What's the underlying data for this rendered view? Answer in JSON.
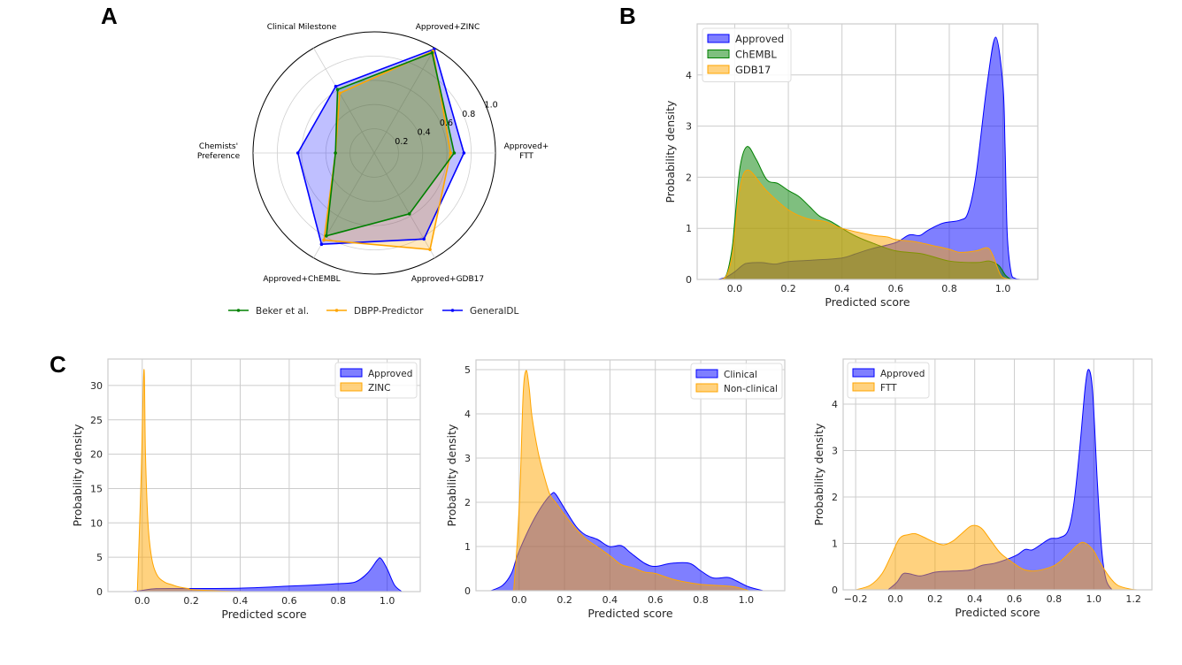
{
  "panels": {
    "a_letter": "A",
    "b_letter": "B",
    "c_letter": "C"
  },
  "colors": {
    "blue": "#0000ff",
    "green": "#008000",
    "orange": "#ffa500",
    "grid": "#cccccc"
  },
  "chart_data": [
    {
      "id": "A",
      "type": "radar",
      "title": "",
      "axes": [
        "Approved+FTT",
        "Approved+ZINC",
        "Clinical Milestone",
        "Chemists' Preference",
        "Approved+ChEMBL",
        "Approved+GDB17"
      ],
      "axis_label_lines": [
        [
          "Approved+",
          "FTT"
        ],
        [
          "Approved+ZINC"
        ],
        [
          "Clinical Milestone"
        ],
        [
          "Chemists'",
          "Preference"
        ],
        [
          "Approved+ChEMBL"
        ],
        [
          "Approved+GDB17"
        ]
      ],
      "rlim": [
        0,
        1.0
      ],
      "rticks": [
        0.2,
        0.4,
        0.6,
        0.8,
        1.0
      ],
      "rtick_labels": [
        "0.2",
        "0.4",
        "0.6",
        "0.8",
        "1.0"
      ],
      "series": [
        {
          "name": "GeneralDL",
          "color": "#0000ff",
          "values": [
            0.74,
            0.99,
            0.635,
            0.63,
            0.87,
            0.82
          ]
        },
        {
          "name": "DBPP-Predictor",
          "color": "#ffa500",
          "values": [
            0.63,
            0.97,
            0.57,
            0.32,
            0.83,
            0.92
          ]
        },
        {
          "name": "Beker et al.",
          "color": "#008000",
          "values": [
            0.66,
            0.955,
            0.605,
            0.32,
            0.79,
            0.58
          ]
        }
      ],
      "legend": [
        "Beker et al.",
        "DBPP-Predictor",
        "GeneralDL"
      ],
      "legend_colors": [
        "#008000",
        "#ffa500",
        "#0000ff"
      ],
      "legend_position": "bottom"
    },
    {
      "id": "B",
      "type": "area",
      "xlabel": "Predicted score",
      "ylabel": "Probability density",
      "xlim": [
        -0.14,
        1.13
      ],
      "ylim": [
        0,
        5.0
      ],
      "xticks": [
        0.0,
        0.2,
        0.4,
        0.6,
        0.8,
        1.0
      ],
      "xtick_labels": [
        "0.0",
        "0.2",
        "0.4",
        "0.6",
        "0.8",
        "1.0"
      ],
      "yticks": [
        0,
        1,
        2,
        3,
        4
      ],
      "ytick_labels": [
        "0",
        "1",
        "2",
        "3",
        "4"
      ],
      "grid": true,
      "legend_position": "top-left",
      "series": [
        {
          "name": "Approved",
          "color": "#0000ff",
          "x": [
            -0.06,
            -0.03,
            0.0,
            0.03,
            0.05,
            0.1,
            0.15,
            0.2,
            0.3,
            0.4,
            0.45,
            0.51,
            0.6,
            0.65,
            0.69,
            0.72,
            0.775,
            0.84,
            0.87,
            0.9,
            0.94,
            0.973,
            1.0,
            1.008,
            1.016,
            1.03,
            1.045,
            1.07
          ],
          "y": [
            0,
            0.05,
            0.15,
            0.28,
            0.32,
            0.33,
            0.3,
            0.35,
            0.38,
            0.42,
            0.5,
            0.6,
            0.72,
            0.87,
            0.86,
            0.96,
            1.1,
            1.16,
            1.31,
            2.05,
            3.78,
            4.74,
            3.8,
            2.6,
            0.9,
            0.15,
            0.02,
            0
          ]
        },
        {
          "name": "ChEMBL",
          "color": "#008000",
          "x": [
            -0.05,
            -0.03,
            -0.01,
            0.0,
            0.02,
            0.046,
            0.08,
            0.12,
            0.16,
            0.2,
            0.24,
            0.28,
            0.316,
            0.36,
            0.4,
            0.45,
            0.51,
            0.6,
            0.7,
            0.8,
            0.9,
            0.95,
            0.985,
            1.01,
            1.03
          ],
          "y": [
            0,
            0.1,
            0.6,
            1.13,
            2.2,
            2.6,
            2.35,
            1.95,
            1.88,
            1.74,
            1.62,
            1.42,
            1.24,
            1.13,
            1.0,
            0.85,
            0.72,
            0.56,
            0.5,
            0.36,
            0.33,
            0.36,
            0.27,
            0.08,
            0
          ]
        },
        {
          "name": "GDB17",
          "color": "#ffa500",
          "x": [
            -0.05,
            -0.03,
            -0.01,
            0.0,
            0.02,
            0.05,
            0.118,
            0.2,
            0.27,
            0.338,
            0.4,
            0.51,
            0.57,
            0.6,
            0.67,
            0.75,
            0.8,
            0.84,
            0.9,
            0.94,
            0.96,
            0.99,
            1.01,
            1.03
          ],
          "y": [
            0,
            0.08,
            0.45,
            0.9,
            1.8,
            2.14,
            1.74,
            1.36,
            1.19,
            1.13,
            1.0,
            0.87,
            0.83,
            0.78,
            0.74,
            0.65,
            0.59,
            0.53,
            0.56,
            0.62,
            0.5,
            0.1,
            0.02,
            0
          ]
        }
      ]
    },
    {
      "id": "C1",
      "type": "area",
      "xlabel": "Predicted score",
      "ylabel": "Probability density",
      "xlim": [
        -0.14,
        1.135
      ],
      "ylim": [
        0,
        33.85
      ],
      "xticks": [
        0.0,
        0.2,
        0.4,
        0.6,
        0.8,
        1.0
      ],
      "xtick_labels": [
        "0.0",
        "0.2",
        "0.4",
        "0.6",
        "0.8",
        "1.0"
      ],
      "yticks": [
        0,
        5,
        10,
        15,
        20,
        25,
        30
      ],
      "ytick_labels": [
        "0",
        "5",
        "10",
        "15",
        "20",
        "25",
        "30"
      ],
      "grid": true,
      "legend_position": "top-right",
      "series": [
        {
          "name": "Approved",
          "color": "#0000ff",
          "x": [
            -0.04,
            0.0,
            0.057,
            0.2,
            0.4,
            0.6,
            0.7,
            0.8,
            0.87,
            0.92,
            0.96,
            0.975,
            1.0,
            1.03,
            1.06
          ],
          "y": [
            0,
            0.17,
            0.43,
            0.45,
            0.5,
            0.8,
            0.95,
            1.16,
            1.4,
            2.7,
            4.6,
            4.8,
            3.3,
            0.95,
            0
          ]
        },
        {
          "name": "ZINC",
          "color": "#ffa500",
          "x": [
            -0.02,
            -0.005,
            0.007,
            0.013,
            0.021,
            0.029,
            0.043,
            0.064,
            0.093,
            0.121,
            0.15,
            0.19,
            0.2,
            0.32,
            0.42
          ],
          "y": [
            0,
            16,
            32.3,
            20.4,
            11.8,
            7.5,
            4.1,
            2.2,
            1.35,
            1.0,
            0.67,
            0.43,
            0.3,
            0.08,
            0
          ]
        }
      ]
    },
    {
      "id": "C2",
      "type": "area",
      "xlabel": "Predicted score",
      "ylabel": "Probability density",
      "xlim": [
        -0.19,
        1.17
      ],
      "ylim": [
        0,
        5.22
      ],
      "xticks": [
        0.0,
        0.2,
        0.4,
        0.6,
        0.8,
        1.0
      ],
      "xtick_labels": [
        "0.0",
        "0.2",
        "0.4",
        "0.6",
        "0.8",
        "1.0"
      ],
      "yticks": [
        0,
        1,
        2,
        3,
        4,
        5
      ],
      "ytick_labels": [
        "0",
        "1",
        "2",
        "3",
        "4",
        "5"
      ],
      "grid": true,
      "legend_position": "top-right",
      "series": [
        {
          "name": "Clinical",
          "color": "#0000ff",
          "x": [
            -0.125,
            -0.073,
            -0.034,
            -0.008,
            0.031,
            0.07,
            0.11,
            0.143,
            0.16,
            0.2,
            0.25,
            0.29,
            0.345,
            0.397,
            0.45,
            0.49,
            0.553,
            0.6,
            0.67,
            0.75,
            0.8,
            0.854,
            0.92,
            0.958,
            1.01,
            1.076
          ],
          "y": [
            0,
            0.12,
            0.39,
            0.79,
            1.26,
            1.66,
            1.99,
            2.19,
            2.19,
            1.86,
            1.46,
            1.27,
            1.16,
            1.0,
            1.02,
            0.86,
            0.62,
            0.55,
            0.62,
            0.62,
            0.45,
            0.29,
            0.3,
            0.22,
            0.09,
            0
          ]
        },
        {
          "name": "Non-clinical",
          "color": "#ffa500",
          "x": [
            -0.024,
            -0.008,
            0.005,
            0.018,
            0.031,
            0.044,
            0.057,
            0.084,
            0.11,
            0.136,
            0.162,
            0.2,
            0.24,
            0.29,
            0.345,
            0.4,
            0.45,
            0.5,
            0.553,
            0.6,
            0.684,
            0.79,
            0.87,
            0.945,
            1.0,
            1.01
          ],
          "y": [
            0,
            1.12,
            2.46,
            4.47,
            4.98,
            4.6,
            3.93,
            3.13,
            2.6,
            2.17,
            1.99,
            1.72,
            1.46,
            1.19,
            0.99,
            0.79,
            0.59,
            0.52,
            0.42,
            0.39,
            0.25,
            0.15,
            0.12,
            0.09,
            0.02,
            0
          ]
        }
      ]
    },
    {
      "id": "C3",
      "type": "area",
      "xlabel": "Predicted score",
      "ylabel": "Probability density",
      "xlim": [
        -0.263,
        1.293
      ],
      "ylim": [
        0,
        4.97
      ],
      "xticks": [
        -0.2,
        0.0,
        0.2,
        0.4,
        0.6,
        0.8,
        1.0,
        1.2
      ],
      "xtick_labels": [
        "−0.2",
        "0.0",
        "0.2",
        "0.4",
        "0.6",
        "0.8",
        "1.0",
        "1.2"
      ],
      "yticks": [
        0,
        1,
        2,
        3,
        4
      ],
      "ytick_labels": [
        "0",
        "1",
        "2",
        "3",
        "4"
      ],
      "grid": true,
      "legend_position": "top-left",
      "series": [
        {
          "name": "Approved",
          "color": "#0000ff",
          "x": [
            -0.037,
            0.007,
            0.037,
            0.067,
            0.126,
            0.2,
            0.26,
            0.32,
            0.379,
            0.44,
            0.498,
            0.57,
            0.617,
            0.654,
            0.69,
            0.735,
            0.78,
            0.825,
            0.87,
            0.9,
            0.93,
            0.958,
            0.976,
            0.995,
            1.018,
            1.04,
            1.062,
            1.092
          ],
          "y": [
            0,
            0.16,
            0.34,
            0.35,
            0.3,
            0.38,
            0.4,
            0.41,
            0.43,
            0.53,
            0.57,
            0.67,
            0.76,
            0.87,
            0.86,
            0.98,
            1.1,
            1.12,
            1.27,
            1.87,
            3.08,
            4.41,
            4.74,
            4.22,
            2.32,
            0.86,
            0.22,
            0
          ]
        },
        {
          "name": "FTT",
          "color": "#ffa500",
          "x": [
            -0.2,
            -0.126,
            -0.067,
            -0.022,
            0.022,
            0.067,
            0.1,
            0.14,
            0.2,
            0.245,
            0.29,
            0.334,
            0.379,
            0.41,
            0.44,
            0.483,
            0.53,
            0.587,
            0.646,
            0.706,
            0.795,
            0.854,
            0.914,
            0.95,
            0.996,
            1.03,
            1.077,
            1.12,
            1.18,
            1.22
          ],
          "y": [
            0,
            0.1,
            0.35,
            0.73,
            1.11,
            1.19,
            1.21,
            1.14,
            1.02,
            0.97,
            1.05,
            1.21,
            1.37,
            1.38,
            1.3,
            1.05,
            0.79,
            0.6,
            0.44,
            0.41,
            0.51,
            0.7,
            0.95,
            1.02,
            0.86,
            0.6,
            0.29,
            0.1,
            0.02,
            0
          ]
        }
      ]
    }
  ]
}
